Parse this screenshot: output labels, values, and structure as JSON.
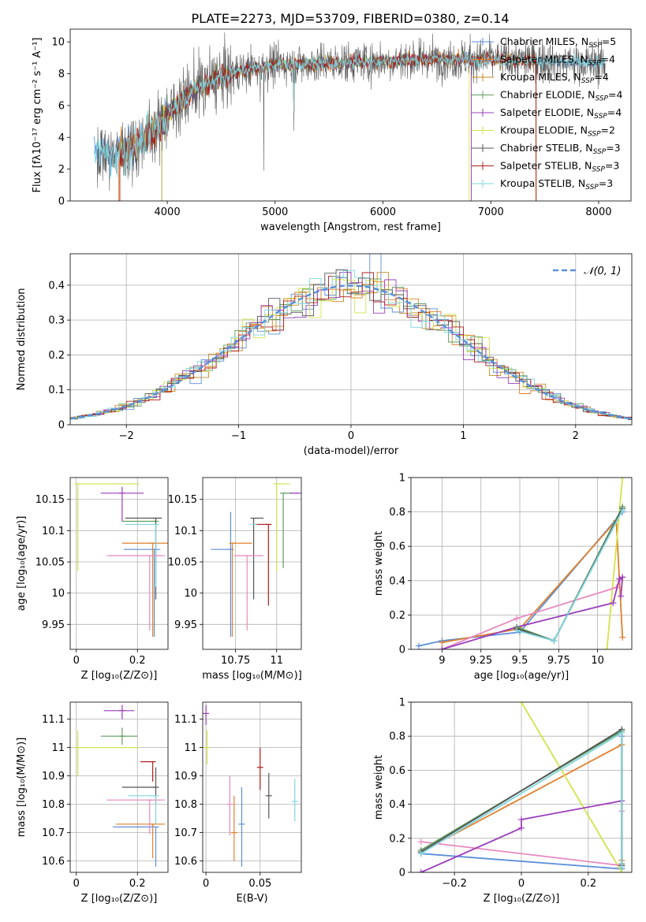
{
  "figure_title": "PLATE=2273, MJD=53709, FIBERID=0380, z=0.14",
  "colors": {
    "Chabrier MILES": "#5b8fd9",
    "Salpeter MILES": "#e07f2a",
    "Kroupa MILES": "#c7881e",
    "Chabrier ELODIE": "#5f9e5f",
    "Salpeter ELODIE": "#9b3dbb",
    "Kroupa ELODIE": "#d4e24a",
    "Chabrier STELIB": "#555555",
    "Salpeter STELIB": "#b01c1c",
    "Kroupa STELIB": "#7fd6df",
    "pink": "#e888c0",
    "normal": "#5b8fd9"
  },
  "chart_data": [
    {
      "type": "line",
      "id": "spectrum",
      "xlabel": "wavelength [Angstrom, rest frame]",
      "ylabel": "Flux [fλ10⁻¹⁷ erg cm⁻² s⁻¹ A⁻¹]",
      "xlim": [
        3100,
        8300
      ],
      "ylim": [
        0,
        10.8
      ],
      "xticks": [
        4000,
        5000,
        6000,
        7000,
        8000
      ],
      "yticks": [
        0,
        2,
        4,
        6,
        8,
        10
      ],
      "grid": false,
      "legend_position": "top-right",
      "legend": [
        {
          "label": "Chabrier MILES, N",
          "sub": "SSP",
          "suffix": "=5",
          "color": "#5b8fd9"
        },
        {
          "label": "Salpeter MILES, N",
          "sub": "SSP",
          "suffix": "=4",
          "color": "#e07f2a"
        },
        {
          "label": "Kroupa MILES, N",
          "sub": "SSP",
          "suffix": "=4",
          "color": "#c7881e"
        },
        {
          "label": "Chabrier ELODIE, N",
          "sub": "SSP",
          "suffix": "=4",
          "color": "#5f9e5f"
        },
        {
          "label": "Salpeter ELODIE, N",
          "sub": "SSP",
          "suffix": "=4",
          "color": "#9b3dbb"
        },
        {
          "label": "Kroupa ELODIE, N",
          "sub": "SSP",
          "suffix": "=2",
          "color": "#d4e24a"
        },
        {
          "label": "Chabrier STELIB, N",
          "sub": "SSP",
          "suffix": "=3",
          "color": "#555555"
        },
        {
          "label": "Salpeter STELIB, N",
          "sub": "SSP",
          "suffix": "=3",
          "color": "#b01c1c"
        },
        {
          "label": "Kroupa STELIB, N",
          "sub": "SSP",
          "suffix": "=3",
          "color": "#7fd6df"
        }
      ],
      "continuum": {
        "x": [
          3320,
          3500,
          3700,
          3900,
          4100,
          4300,
          4500,
          4700,
          5000,
          5300,
          5600,
          6000,
          6500,
          7000,
          7500,
          8060
        ],
        "y": [
          3.2,
          2.8,
          3.5,
          4.5,
          6.2,
          7.2,
          7.8,
          8.2,
          8.6,
          8.6,
          8.7,
          8.8,
          8.9,
          8.9,
          8.8,
          8.6
        ]
      },
      "absorption_features": [
        {
          "x": 4340,
          "y": 5.6
        },
        {
          "x": 4861,
          "y": 6.2
        },
        {
          "x": 4896,
          "y": 1.9
        },
        {
          "x": 5175,
          "y": 4.4
        },
        {
          "x": 5890,
          "y": 7.0
        }
      ]
    },
    {
      "type": "histogram",
      "id": "residuals",
      "xlabel": "(data-model)/error",
      "ylabel": "Normed distribution",
      "xlim": [
        -2.5,
        2.5
      ],
      "ylim": [
        0,
        0.49
      ],
      "xticks": [
        -2,
        -1,
        0,
        1,
        2
      ],
      "yticks": [
        0.0,
        0.1,
        0.2,
        0.3,
        0.4
      ],
      "grid": true,
      "legend_position": "top-right",
      "legend_label": "𝒩(0, 1)",
      "bin_width": 0.1
    },
    {
      "type": "scatter",
      "id": "age_vs_Z",
      "xlabel": "Z [log₁₀(Z/Z⊙)]",
      "ylabel": "age [log₁₀(age/yr)]",
      "xlim": [
        -0.02,
        0.3
      ],
      "ylim": [
        9.91,
        10.185
      ],
      "xticks": [
        0.0,
        0.2
      ],
      "yticks": [
        9.95,
        10.0,
        10.05,
        10.1,
        10.15
      ],
      "grid": true,
      "points": [
        {
          "color": "#5b8fd9",
          "x": 0.255,
          "xerr": [
            0.1,
            0.02
          ],
          "y": 10.07,
          "yerr": [
            0.14,
            0.0
          ]
        },
        {
          "color": "#e07f2a",
          "x": 0.25,
          "xerr": [
            0.1,
            0.05
          ],
          "y": 10.08,
          "yerr": [
            0.15,
            0.0
          ]
        },
        {
          "color": "#5f9e5f",
          "x": 0.26,
          "xerr": [
            0.11,
            0.0
          ],
          "y": 10.115,
          "yerr": [
            0.1,
            0.0
          ]
        },
        {
          "color": "#9b3dbb",
          "x": 0.15,
          "xerr": [
            0.07,
            0.07
          ],
          "y": 10.16,
          "yerr": [
            0.045,
            0.01
          ]
        },
        {
          "color": "#d4e24a",
          "x": 0.005,
          "xerr": [
            0.0,
            0.2
          ],
          "y": 10.175,
          "yerr": [
            0.14,
            0.0
          ]
        },
        {
          "color": "#555555",
          "x": 0.26,
          "xerr": [
            0.1,
            0.02
          ],
          "y": 10.12,
          "yerr": [
            0.13,
            0.0
          ]
        },
        {
          "color": "#7fd6df",
          "x": 0.26,
          "xerr": [
            0.1,
            0.0
          ],
          "y": 10.11,
          "yerr": [
            0.1,
            0.0
          ]
        },
        {
          "color": "#e888c0",
          "x": 0.24,
          "xerr": [
            0.14,
            0.05
          ],
          "y": 10.06,
          "yerr": [
            0.12,
            0.0
          ]
        }
      ]
    },
    {
      "type": "scatter",
      "id": "age_vs_mass",
      "xlabel": "mass [log₁₀(M/M⊙)]",
      "ylabel": "",
      "xlim": [
        10.55,
        11.15
      ],
      "ylim": [
        9.91,
        10.185
      ],
      "xticks": [
        10.75,
        11.0
      ],
      "yticks": [
        9.95,
        10.0,
        10.05,
        10.1,
        10.15
      ],
      "grid": true,
      "points": [
        {
          "color": "#5b8fd9",
          "x": 10.72,
          "xerr": [
            0.12,
            0.0
          ],
          "y": 10.07,
          "yerr": [
            0.14,
            0.06
          ]
        },
        {
          "color": "#e07f2a",
          "x": 10.73,
          "xerr": [
            0.0,
            0.12
          ],
          "y": 10.08,
          "yerr": [
            0.15,
            0.0
          ]
        },
        {
          "color": "#5f9e5f",
          "x": 11.04,
          "xerr": [
            0.0,
            0.06
          ],
          "y": 10.16,
          "yerr": [
            0.12,
            0.0
          ]
        },
        {
          "color": "#9b3dbb",
          "x": 11.13,
          "xerr": [
            0.05,
            0.0
          ],
          "y": 10.16,
          "yerr": [
            0.0,
            0.0
          ]
        },
        {
          "color": "#d4e24a",
          "x": 11.0,
          "xerr": [
            0.0,
            0.08
          ],
          "y": 10.175,
          "yerr": [
            0.14,
            0.0
          ]
        },
        {
          "color": "#555555",
          "x": 10.86,
          "xerr": [
            0.0,
            0.06
          ],
          "y": 10.12,
          "yerr": [
            0.13,
            0.0
          ]
        },
        {
          "color": "#b01c1c",
          "x": 10.95,
          "xerr": [
            0.09,
            0.0
          ],
          "y": 10.11,
          "yerr": [
            0.13,
            0.0
          ]
        },
        {
          "color": "#7fd6df",
          "x": 10.86,
          "xerr": [
            0.0,
            0.0
          ],
          "y": 10.11,
          "yerr": [
            0.0,
            0.0
          ]
        },
        {
          "color": "#e888c0",
          "x": 10.82,
          "xerr": [
            0.08,
            0.1
          ],
          "y": 10.06,
          "yerr": [
            0.12,
            0.0
          ]
        }
      ]
    },
    {
      "type": "line",
      "id": "mass_weight_vs_age",
      "xlabel": "age [log₁₀(age/yr)]",
      "ylabel": "mass weight",
      "xlim": [
        8.8,
        10.22
      ],
      "ylim": [
        0,
        1.0
      ],
      "xticks": [
        9.0,
        9.25,
        9.5,
        9.75,
        10.0
      ],
      "yticks": [
        0.0,
        0.2,
        0.4,
        0.6,
        0.8,
        1.0
      ],
      "grid": true,
      "series": [
        {
          "color": "#5b8fd9",
          "x": [
            8.85,
            9.0,
            9.5,
            10.16
          ],
          "y": [
            0.02,
            0.05,
            0.1,
            0.8
          ]
        },
        {
          "color": "#e07f2a",
          "x": [
            9.0,
            9.5,
            10.12,
            10.16
          ],
          "y": [
            0.04,
            0.12,
            0.75,
            0.07
          ]
        },
        {
          "color": "#d4e24a",
          "x": [
            10.06,
            10.16
          ],
          "y": [
            0.0,
            1.0
          ]
        },
        {
          "color": "#e888c0",
          "x": [
            9.0,
            9.48,
            10.12,
            10.16
          ],
          "y": [
            0.0,
            0.18,
            0.36,
            0.42
          ]
        },
        {
          "color": "#9b3dbb",
          "x": [
            9.0,
            9.48,
            10.1,
            10.14,
            10.16,
            10.15
          ],
          "y": [
            0.0,
            0.13,
            0.27,
            0.41,
            0.42,
            0.31
          ]
        },
        {
          "color": "#5f9e5f",
          "x": [
            9.48,
            9.72,
            10.16
          ],
          "y": [
            0.13,
            0.05,
            0.83
          ]
        },
        {
          "color": "#555555",
          "x": [
            9.48,
            9.72,
            10.16
          ],
          "y": [
            0.12,
            0.05,
            0.82
          ]
        },
        {
          "color": "#7fd6df",
          "x": [
            9.48,
            9.72,
            10.16
          ],
          "y": [
            0.11,
            0.05,
            0.81
          ]
        }
      ]
    },
    {
      "type": "scatter",
      "id": "mass_vs_Z",
      "xlabel": "Z [log₁₀(Z/Z⊙)]",
      "ylabel": "mass [log₁₀(M/M⊙)]",
      "xlim": [
        -0.02,
        0.3
      ],
      "ylim": [
        10.56,
        11.16
      ],
      "xticks": [
        0.0,
        0.2
      ],
      "yticks": [
        10.6,
        10.7,
        10.8,
        10.9,
        11.0,
        11.1
      ],
      "grid": true,
      "points": [
        {
          "color": "#5b8fd9",
          "x": 0.26,
          "xerr": [
            0.14,
            0.0
          ],
          "y": 10.72,
          "yerr": [
            0.14,
            0.0
          ]
        },
        {
          "color": "#e07f2a",
          "x": 0.25,
          "xerr": [
            0.12,
            0.04
          ],
          "y": 10.73,
          "yerr": [
            0.12,
            0.0
          ]
        },
        {
          "color": "#5f9e5f",
          "x": 0.15,
          "xerr": [
            0.07,
            0.05
          ],
          "y": 11.04,
          "yerr": [
            0.03,
            0.03
          ]
        },
        {
          "color": "#9b3dbb",
          "x": 0.15,
          "xerr": [
            0.06,
            0.04
          ],
          "y": 11.13,
          "yerr": [
            0.03,
            0.02
          ]
        },
        {
          "color": "#d4e24a",
          "x": 0.005,
          "xerr": [
            0.0,
            0.2
          ],
          "y": 11.0,
          "yerr": [
            0.1,
            0.06
          ]
        },
        {
          "color": "#555555",
          "x": 0.26,
          "xerr": [
            0.11,
            0.0
          ],
          "y": 10.86,
          "yerr": [
            0.06,
            0.07
          ]
        },
        {
          "color": "#b01c1c",
          "x": 0.25,
          "xerr": [
            0.04,
            0.0
          ],
          "y": 10.95,
          "yerr": [
            0.07,
            0.0
          ]
        },
        {
          "color": "#7fd6df",
          "x": 0.26,
          "xerr": [
            0.09,
            0.0
          ],
          "y": 10.83,
          "yerr": [
            0.1,
            0.0
          ]
        },
        {
          "color": "#e888c0",
          "x": 0.24,
          "xerr": [
            0.14,
            0.05
          ],
          "y": 10.815,
          "yerr": [
            0.12,
            0.0
          ]
        }
      ]
    },
    {
      "type": "scatter",
      "id": "mass_vs_ebv",
      "xlabel": "E(B-V)",
      "ylabel": "",
      "xlim": [
        -0.003,
        0.088
      ],
      "ylim": [
        10.56,
        11.16
      ],
      "xticks": [
        0.0,
        0.05
      ],
      "yticks": [
        10.6,
        10.7,
        10.8,
        10.9,
        11.0,
        11.1
      ],
      "grid": true,
      "points": [
        {
          "color": "#9b3dbb",
          "x": 0.0,
          "y": 11.12,
          "yerr": [
            0.04,
            0.03
          ]
        },
        {
          "color": "#d4e24a",
          "x": 0.001,
          "y": 11.0,
          "yerr": [
            0.06,
            0.06
          ]
        },
        {
          "color": "#e888c0",
          "x": 0.022,
          "y": 10.8,
          "yerr": [
            0.11,
            0.1
          ]
        },
        {
          "color": "#e07f2a",
          "x": 0.026,
          "y": 10.7,
          "yerr": [
            0.1,
            0.13
          ]
        },
        {
          "color": "#5b8fd9",
          "x": 0.033,
          "y": 10.73,
          "yerr": [
            0.15,
            0.13
          ]
        },
        {
          "color": "#b01c1c",
          "x": 0.05,
          "y": 10.93,
          "yerr": [
            0.08,
            0.07
          ]
        },
        {
          "color": "#555555",
          "x": 0.058,
          "y": 10.83,
          "yerr": [
            0.08,
            0.08
          ]
        },
        {
          "color": "#7fd6df",
          "x": 0.082,
          "y": 10.81,
          "yerr": [
            0.07,
            0.08
          ]
        }
      ]
    },
    {
      "type": "line",
      "id": "mass_weight_vs_Z",
      "xlabel": "Z [log₁₀(Z/Z⊙)]",
      "ylabel": "mass weight",
      "xlim": [
        -0.33,
        0.33
      ],
      "ylim": [
        0,
        1.0
      ],
      "xticks": [
        -0.2,
        0.0,
        0.2
      ],
      "yticks": [
        0.0,
        0.2,
        0.4,
        0.6,
        0.8,
        1.0
      ],
      "grid": true,
      "series": [
        {
          "color": "#5b8fd9",
          "x": [
            -0.3,
            0.3,
            0.3
          ],
          "y": [
            0.11,
            0.02,
            0.8
          ]
        },
        {
          "color": "#e07f2a",
          "x": [
            -0.3,
            0.3,
            0.3
          ],
          "y": [
            0.12,
            0.75,
            0.07
          ]
        },
        {
          "color": "#d4e24a",
          "x": [
            0.0,
            0.3
          ],
          "y": [
            1.0,
            0.0
          ]
        },
        {
          "color": "#e888c0",
          "x": [
            -0.3,
            0.3,
            0.3
          ],
          "y": [
            0.18,
            0.04,
            0.36
          ]
        },
        {
          "color": "#9b3dbb",
          "x": [
            -0.3,
            0.0,
            0.0,
            0.3
          ],
          "y": [
            0.0,
            0.26,
            0.31,
            0.42
          ]
        },
        {
          "color": "#5f9e5f",
          "x": [
            -0.3,
            0.3,
            0.3
          ],
          "y": [
            0.13,
            0.83,
            0.05
          ]
        },
        {
          "color": "#555555",
          "x": [
            -0.3,
            0.3,
            0.3
          ],
          "y": [
            0.12,
            0.84,
            0.04
          ]
        },
        {
          "color": "#7fd6df",
          "x": [
            -0.3,
            0.3,
            0.3
          ],
          "y": [
            0.11,
            0.82,
            0.03
          ]
        }
      ]
    }
  ]
}
